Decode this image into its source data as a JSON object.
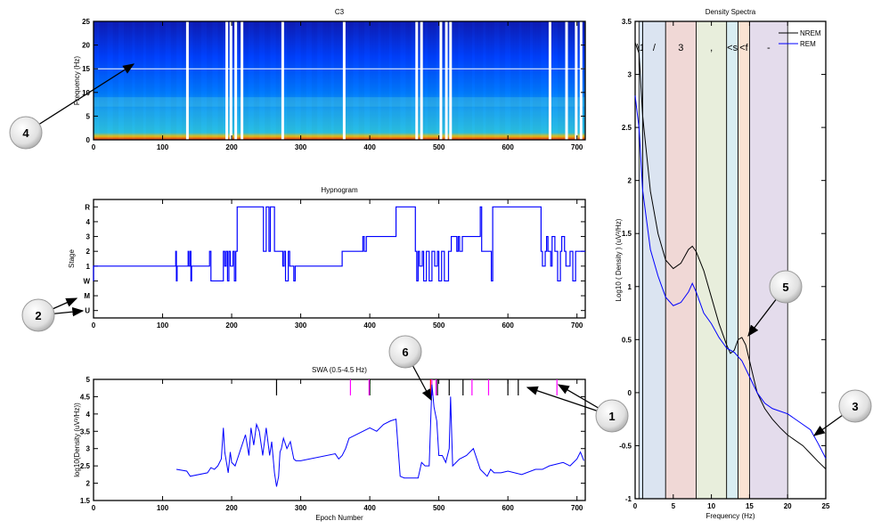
{
  "chart_data": [
    {
      "type": "heatmap",
      "title": "C3",
      "ylabel": "Frequency (Hz)",
      "xlim": [
        0,
        712
      ],
      "ylim": [
        0,
        25
      ],
      "xticks": [
        0,
        100,
        200,
        300,
        400,
        500,
        600,
        700
      ],
      "yticks": [
        0,
        5,
        10,
        15,
        20,
        25
      ],
      "colormap": [
        "#1010a0",
        "#0040ff",
        "#00a0ff",
        "#30d0e0",
        "#ffff00",
        "#ff2000"
      ],
      "artifact_epochs": [
        134,
        191,
        197,
        204,
        213,
        272,
        361,
        466,
        473,
        501,
        509,
        515,
        659,
        683,
        697,
        704
      ]
    },
    {
      "type": "line",
      "title": "Hypnogram",
      "ylabel": "Stage",
      "xlim": [
        0,
        712
      ],
      "xticks": [
        0,
        100,
        200,
        300,
        400,
        500,
        600,
        700
      ],
      "ytick_labels": [
        "U",
        "M",
        "W",
        "1",
        "2",
        "3",
        "4",
        "R"
      ],
      "ytick_values": [
        -2,
        -1,
        0,
        1,
        2,
        3,
        4,
        5
      ],
      "color": "#0000ff",
      "steps": [
        [
          0,
          0
        ],
        [
          119,
          1
        ],
        [
          120,
          2
        ],
        [
          121,
          0
        ],
        [
          137,
          1
        ],
        [
          138,
          2
        ],
        [
          140,
          1
        ],
        [
          141,
          2
        ],
        [
          142,
          0
        ],
        [
          168,
          1
        ],
        [
          170,
          2
        ],
        [
          188,
          0
        ],
        [
          190,
          2
        ],
        [
          192,
          1
        ],
        [
          194,
          2
        ],
        [
          196,
          0
        ],
        [
          198,
          2
        ],
        [
          202,
          1
        ],
        [
          204,
          2
        ],
        [
          206,
          0
        ],
        [
          208,
          2
        ],
        [
          246,
          5
        ],
        [
          250,
          2
        ],
        [
          254,
          5
        ],
        [
          256,
          2
        ],
        [
          260,
          5
        ],
        [
          262,
          5
        ],
        [
          274,
          2
        ],
        [
          276,
          1
        ],
        [
          278,
          2
        ],
        [
          282,
          0
        ],
        [
          284,
          2
        ],
        [
          290,
          1
        ],
        [
          292,
          0
        ],
        [
          360,
          1
        ],
        [
          362,
          2
        ],
        [
          390,
          2
        ],
        [
          392,
          3
        ],
        [
          395,
          2
        ],
        [
          398,
          3
        ],
        [
          438,
          3
        ],
        [
          444,
          5
        ],
        [
          466,
          5
        ],
        [
          468,
          2
        ],
        [
          470,
          0
        ],
        [
          472,
          2
        ],
        [
          476,
          1
        ],
        [
          478,
          2
        ],
        [
          482,
          0
        ],
        [
          486,
          2
        ],
        [
          490,
          0
        ],
        [
          494,
          2
        ],
        [
          498,
          1
        ],
        [
          500,
          2
        ],
        [
          504,
          0
        ],
        [
          508,
          2
        ],
        [
          514,
          0
        ],
        [
          518,
          2
        ],
        [
          526,
          3
        ],
        [
          528,
          2
        ],
        [
          530,
          3
        ],
        [
          534,
          2
        ],
        [
          538,
          3
        ],
        [
          560,
          3
        ],
        [
          562,
          5
        ],
        [
          576,
          2
        ],
        [
          578,
          0
        ],
        [
          580,
          5
        ],
        [
          648,
          5
        ],
        [
          650,
          2
        ],
        [
          654,
          1
        ],
        [
          656,
          2
        ],
        [
          658,
          3
        ],
        [
          662,
          2
        ],
        [
          664,
          1
        ],
        [
          668,
          3
        ],
        [
          672,
          2
        ],
        [
          676,
          0
        ],
        [
          678,
          2
        ],
        [
          682,
          3
        ],
        [
          684,
          2
        ],
        [
          690,
          1
        ],
        [
          694,
          2
        ],
        [
          698,
          0
        ],
        [
          700,
          2
        ],
        [
          712,
          2
        ]
      ]
    },
    {
      "type": "line",
      "title": "SWA (0.5-4.5 Hz)",
      "xlabel": "Epoch Number",
      "ylabel": "log10(Density (uV²/Hz))",
      "xlim": [
        0,
        712
      ],
      "ylim": [
        1.5,
        5
      ],
      "xticks": [
        0,
        100,
        200,
        300,
        400,
        500,
        600,
        700
      ],
      "yticks": [
        1.5,
        2,
        2.5,
        3,
        3.5,
        4,
        4.5,
        5
      ],
      "color": "#0000ff",
      "x": [
        120,
        135,
        140,
        165,
        170,
        175,
        180,
        185,
        188,
        190,
        195,
        198,
        200,
        205,
        210,
        220,
        225,
        228,
        232,
        236,
        240,
        245,
        250,
        255,
        258,
        262,
        265,
        268,
        270,
        272,
        275,
        280,
        285,
        290,
        293,
        296,
        300,
        350,
        355,
        360,
        365,
        370,
        380,
        390,
        400,
        410,
        420,
        430,
        438,
        444,
        450,
        460,
        470,
        475,
        480,
        486,
        490,
        493,
        497,
        500,
        505,
        510,
        515,
        517,
        520,
        525,
        530,
        540,
        550,
        560,
        565,
        570,
        575,
        580,
        590,
        600,
        620,
        640,
        650,
        660,
        680,
        690,
        700,
        705,
        710
      ],
      "y": [
        2.4,
        2.35,
        2.2,
        2.3,
        2.45,
        2.4,
        2.5,
        2.7,
        3.6,
        2.9,
        2.3,
        2.9,
        2.6,
        2.5,
        2.8,
        3.4,
        2.8,
        3.6,
        3.1,
        3.7,
        3.5,
        2.8,
        3.6,
        2.8,
        3.2,
        2.3,
        1.9,
        2.2,
        2.9,
        3.0,
        3.3,
        3.0,
        3.2,
        2.7,
        2.65,
        2.65,
        2.65,
        2.85,
        2.7,
        2.8,
        3.0,
        3.3,
        3.4,
        3.5,
        3.6,
        3.5,
        3.7,
        3.8,
        3.85,
        2.2,
        2.15,
        2.15,
        2.15,
        2.6,
        2.5,
        2.5,
        4.85,
        4.2,
        3.8,
        2.8,
        2.8,
        2.6,
        3.0,
        4.5,
        2.5,
        2.6,
        2.7,
        2.8,
        3.0,
        2.4,
        2.3,
        2.2,
        2.4,
        2.3,
        2.3,
        2.35,
        2.25,
        2.4,
        2.4,
        2.5,
        2.6,
        2.5,
        2.7,
        2.9,
        2.65
      ],
      "event_markers": {
        "black": [
          265,
          400,
          498,
          515,
          535,
          600,
          615
        ],
        "magenta": [
          372,
          399,
          490,
          496,
          548,
          572,
          671
        ],
        "red": [
          488
        ]
      }
    },
    {
      "type": "line",
      "title": "Density Spectra",
      "xlabel": "Frequency (Hz)",
      "ylabel": "Log10 ( Density ) (uV²/Hz)",
      "xlim": [
        0,
        25
      ],
      "ylim": [
        -1,
        3.5
      ],
      "xticks": [
        0,
        5,
        10,
        15,
        20,
        25
      ],
      "yticks": [
        -1,
        -0.5,
        0,
        0.5,
        1,
        1.5,
        2,
        2.5,
        3,
        3.5
      ],
      "legend_position": "top-right",
      "bands": [
        {
          "label": "\\1",
          "from": 0.5,
          "to": 1,
          "color": "#d6e2f0"
        },
        {
          "label": "/",
          "from": 1,
          "to": 4,
          "color": "#dbe4f1"
        },
        {
          "label": "3",
          "from": 4,
          "to": 8,
          "color": "#f0d8d6"
        },
        {
          "label": ",",
          "from": 8,
          "to": 12,
          "color": "#e8eedc"
        },
        {
          "label": "<s",
          "from": 12,
          "to": 13.5,
          "color": "#d9eef3"
        },
        {
          "label": "<f",
          "from": 13.5,
          "to": 15,
          "color": "#fbe3d3"
        },
        {
          "label": "-",
          "from": 15,
          "to": 20,
          "color": "#e4dcec"
        }
      ],
      "series": [
        {
          "name": "NREM",
          "color": "#000000",
          "x": [
            0,
            0.5,
            1,
            2,
            3,
            4,
            5,
            6,
            7,
            7.5,
            8,
            9,
            10,
            11,
            12,
            12.5,
            13,
            13.5,
            14,
            14.5,
            15,
            16,
            17,
            18,
            19,
            20,
            22,
            24,
            25
          ],
          "y": [
            3.3,
            3.2,
            2.6,
            1.9,
            1.5,
            1.25,
            1.17,
            1.22,
            1.35,
            1.38,
            1.33,
            1.15,
            0.9,
            0.65,
            0.45,
            0.37,
            0.4,
            0.5,
            0.52,
            0.45,
            0.3,
            0.0,
            -0.15,
            -0.25,
            -0.33,
            -0.4,
            -0.5,
            -0.65,
            -0.72
          ]
        },
        {
          "name": "REM",
          "color": "#0000ff",
          "x": [
            0,
            0.5,
            1,
            2,
            3,
            4,
            5,
            6,
            7,
            7.5,
            8,
            9,
            10,
            11,
            12,
            13,
            14,
            15,
            16,
            17,
            18,
            20,
            22,
            23,
            24,
            25
          ],
          "y": [
            2.8,
            2.5,
            1.9,
            1.35,
            1.1,
            0.9,
            0.82,
            0.85,
            0.95,
            1.03,
            0.95,
            0.75,
            0.65,
            0.52,
            0.42,
            0.38,
            0.3,
            0.15,
            0.0,
            -0.1,
            -0.15,
            -0.2,
            -0.3,
            -0.35,
            -0.48,
            -0.62
          ]
        }
      ]
    }
  ],
  "callouts": [
    "1",
    "2",
    "3",
    "4",
    "5",
    "6"
  ]
}
